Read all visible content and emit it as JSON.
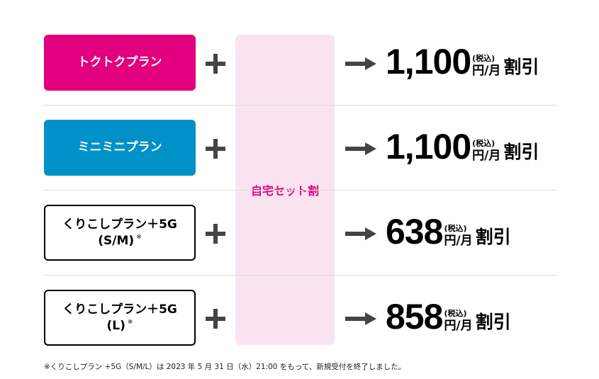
{
  "colors": {
    "tokutoku": "#e3007f",
    "minimini": "#0091c8",
    "discount_bg": "#fbe4f1",
    "discount_text": "#e3007f"
  },
  "plans": [
    {
      "label_line1": "トクトクプラン",
      "label_line2": "",
      "note": ""
    },
    {
      "label_line1": "ミニミニプラン",
      "label_line2": "",
      "note": ""
    },
    {
      "label_line1": "くりこしプラン＋5G",
      "label_line2": "(S/M)",
      "note": "※"
    },
    {
      "label_line1": "くりこしプラン＋5G",
      "label_line2": "(L)",
      "note": "※"
    }
  ],
  "discount_label": "自宅セット割",
  "prices": [
    {
      "amount": "1,100",
      "tax": "(税込)",
      "per": "円/月",
      "off": "割引"
    },
    {
      "amount": "1,100",
      "tax": "(税込)",
      "per": "円/月",
      "off": "割引"
    },
    {
      "amount": "638",
      "tax": "(税込)",
      "per": "円/月",
      "off": "割引"
    },
    {
      "amount": "858",
      "tax": "(税込)",
      "per": "円/月",
      "off": "割引"
    }
  ],
  "footnote": "※くりこしプラン +5G（S/M/L）は 2023 年 5 月 31 日（水）21:00 をもって、新規受付を終了しました。"
}
